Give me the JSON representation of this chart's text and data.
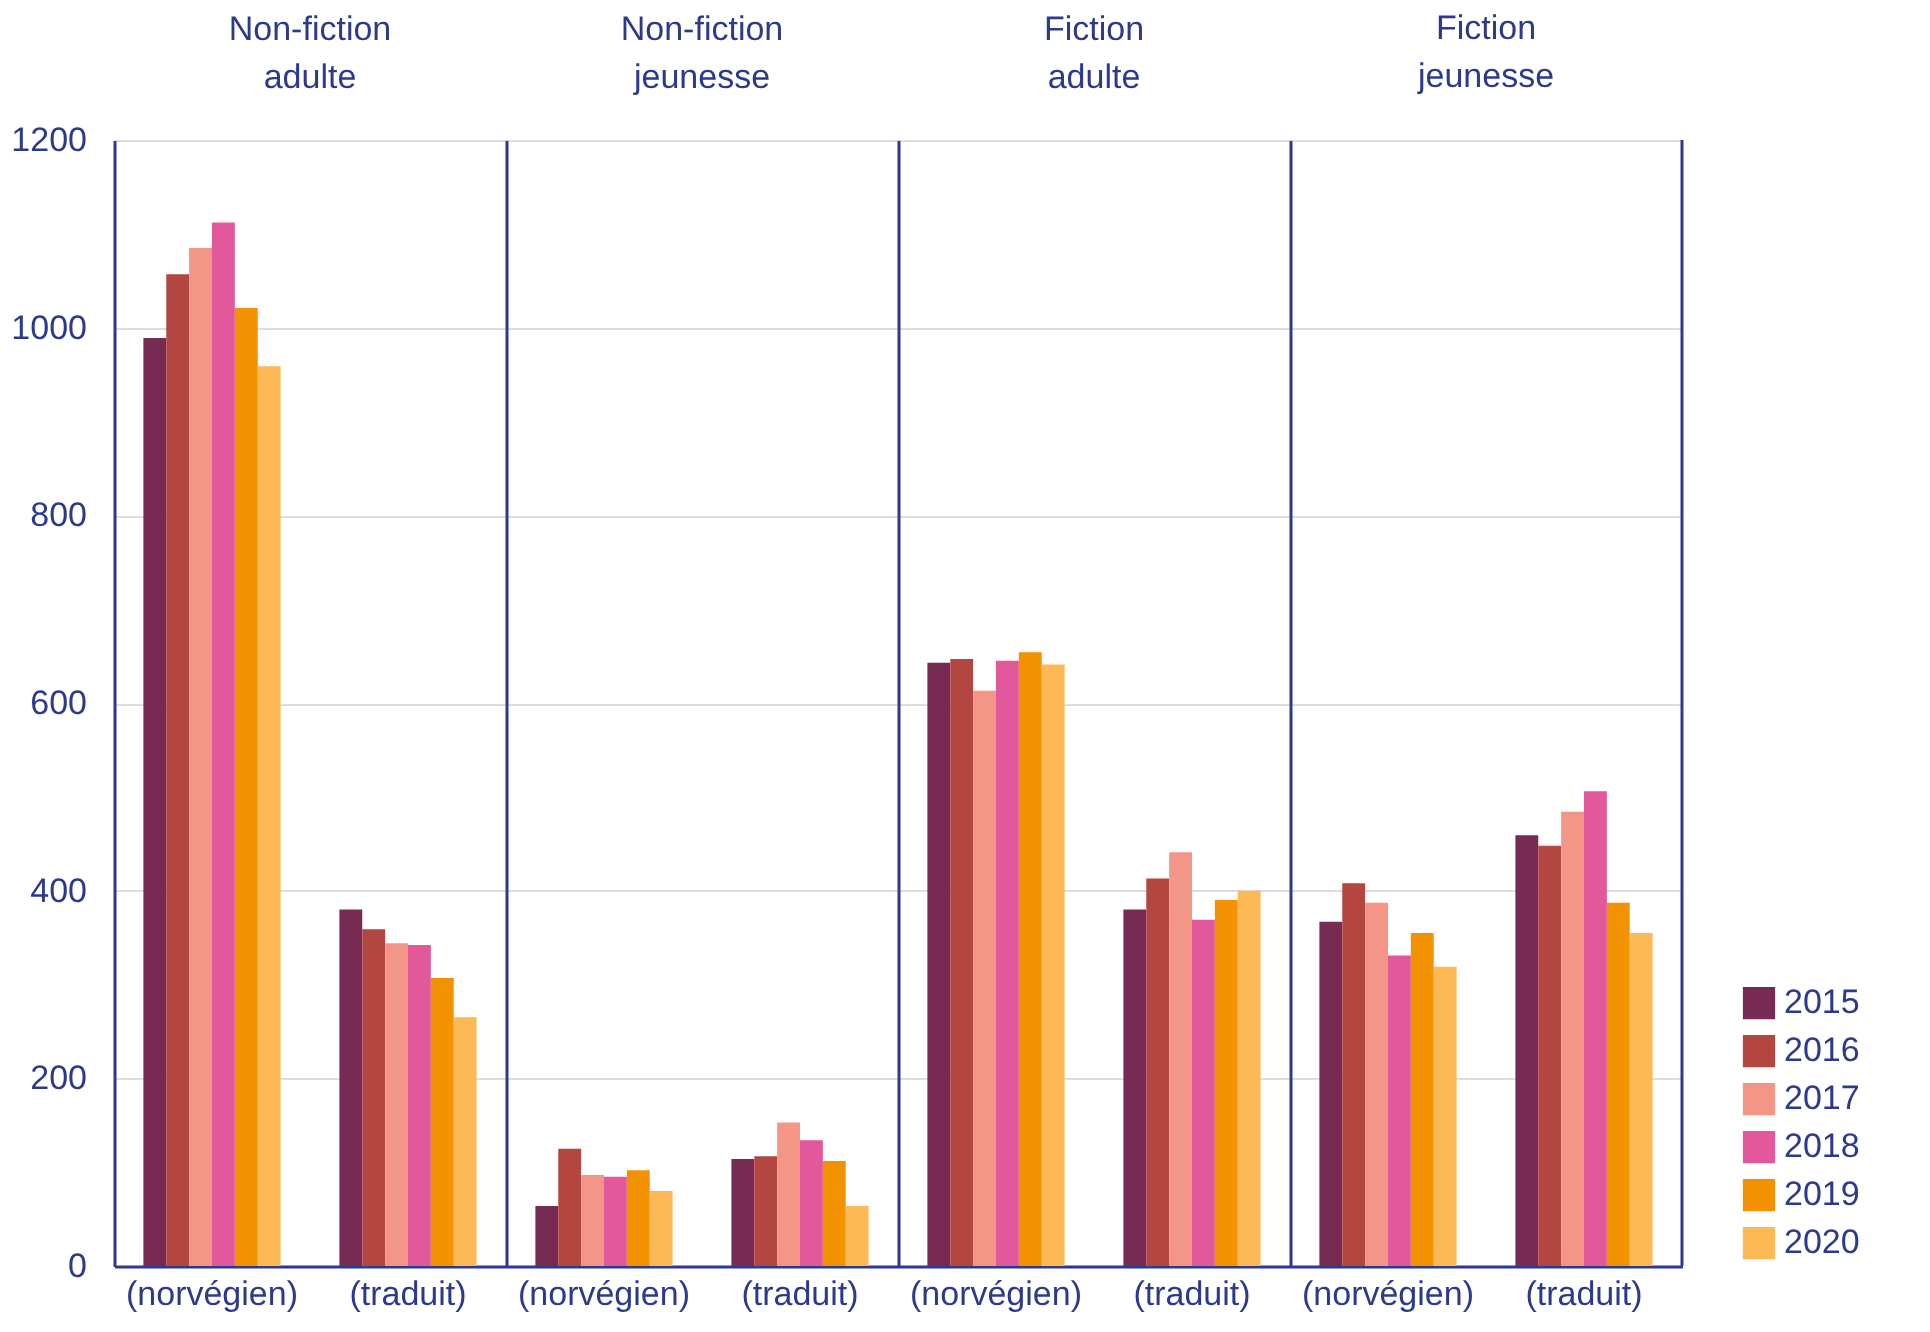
{
  "chart_data": [
    {
      "type": "bar",
      "title": "Non-fiction\nadulte",
      "categories": [
        "(norvégien)",
        "(traduit)"
      ],
      "ylim": [
        0,
        1200
      ],
      "yticks": [
        0,
        200,
        400,
        600,
        800,
        1000,
        1200
      ],
      "grid": "y",
      "legend": "bottom right",
      "series": [
        {
          "name": "2015",
          "color": "#772a52",
          "values": [
            989,
            380
          ]
        },
        {
          "name": "2016",
          "color": "#b34640",
          "values": [
            1057,
            359
          ]
        },
        {
          "name": "2017",
          "color": "#f39687",
          "values": [
            1085,
            344
          ]
        },
        {
          "name": "2018",
          "color": "#e1599b",
          "values": [
            1112,
            342
          ]
        },
        {
          "name": "2019",
          "color": "#f29200",
          "values": [
            1021,
            307
          ]
        },
        {
          "name": "2020",
          "color": "#fcb955",
          "values": [
            959,
            265
          ]
        }
      ]
    },
    {
      "type": "bar",
      "title": "Non-fiction\njeunesse",
      "categories": [
        "(norvégien)",
        "(traduit)"
      ],
      "ylim": [
        0,
        1200
      ],
      "yticks": [
        0,
        200,
        400,
        600,
        800,
        1000,
        1200
      ],
      "grid": "y",
      "tick_labels": "x",
      "series": [
        {
          "name": "2015",
          "color": "#772a52",
          "values": [
            64,
            114
          ]
        },
        {
          "name": "2016",
          "color": "#b34640",
          "values": [
            125,
            117
          ]
        },
        {
          "name": "2017",
          "color": "#f39687",
          "values": [
            97,
            153
          ]
        },
        {
          "name": "2018",
          "color": "#e1599b",
          "values": [
            95,
            134
          ]
        },
        {
          "name": "2019",
          "color": "#f29200",
          "values": [
            102,
            112
          ]
        },
        {
          "name": "2020",
          "color": "#fcb955",
          "values": [
            80,
            64
          ]
        }
      ]
    },
    {
      "type": "bar",
      "title": "Fiction\nadulte",
      "categories": [
        "(norvégien)",
        "(traduit)"
      ],
      "ylim": [
        0,
        1200
      ],
      "yticks": [
        0,
        200,
        400,
        600,
        800,
        1000,
        1200
      ],
      "grid": "y",
      "tick_labels": "x",
      "series": [
        {
          "name": "2015",
          "color": "#772a52",
          "values": [
            643,
            380
          ]
        },
        {
          "name": "2016",
          "color": "#b34640",
          "values": [
            647,
            413
          ]
        },
        {
          "name": "2017",
          "color": "#f39687",
          "values": [
            613,
            441
          ]
        },
        {
          "name": "2018",
          "color": "#e1599b",
          "values": [
            645,
            369
          ]
        },
        {
          "name": "2019",
          "color": "#f29200",
          "values": [
            654,
            390
          ]
        },
        {
          "name": "2020",
          "color": "#fcb955",
          "values": [
            641,
            400
          ]
        }
      ]
    },
    {
      "type": "bar",
      "title": "Fiction\njeunesse",
      "categories": [
        "(norvégien)",
        "(traduit)"
      ],
      "ylim": [
        0,
        1200
      ],
      "yticks": [
        0,
        200,
        400,
        600,
        800,
        1000,
        1200
      ],
      "grid": "y",
      "tick_labels": "x",
      "series": [
        {
          "name": "2015",
          "color": "#772a52",
          "values": [
            367,
            459
          ]
        },
        {
          "name": "2016",
          "color": "#b34640",
          "values": [
            408,
            448
          ]
        },
        {
          "name": "2017",
          "color": "#f39687",
          "values": [
            387,
            484
          ]
        },
        {
          "name": "2018",
          "color": "#e1599b",
          "values": [
            331,
            506
          ]
        },
        {
          "name": "2019",
          "color": "#f29200",
          "values": [
            355,
            387
          ]
        },
        {
          "name": "2020",
          "color": "#fcb955",
          "values": [
            319,
            355
          ]
        }
      ]
    }
  ]
}
